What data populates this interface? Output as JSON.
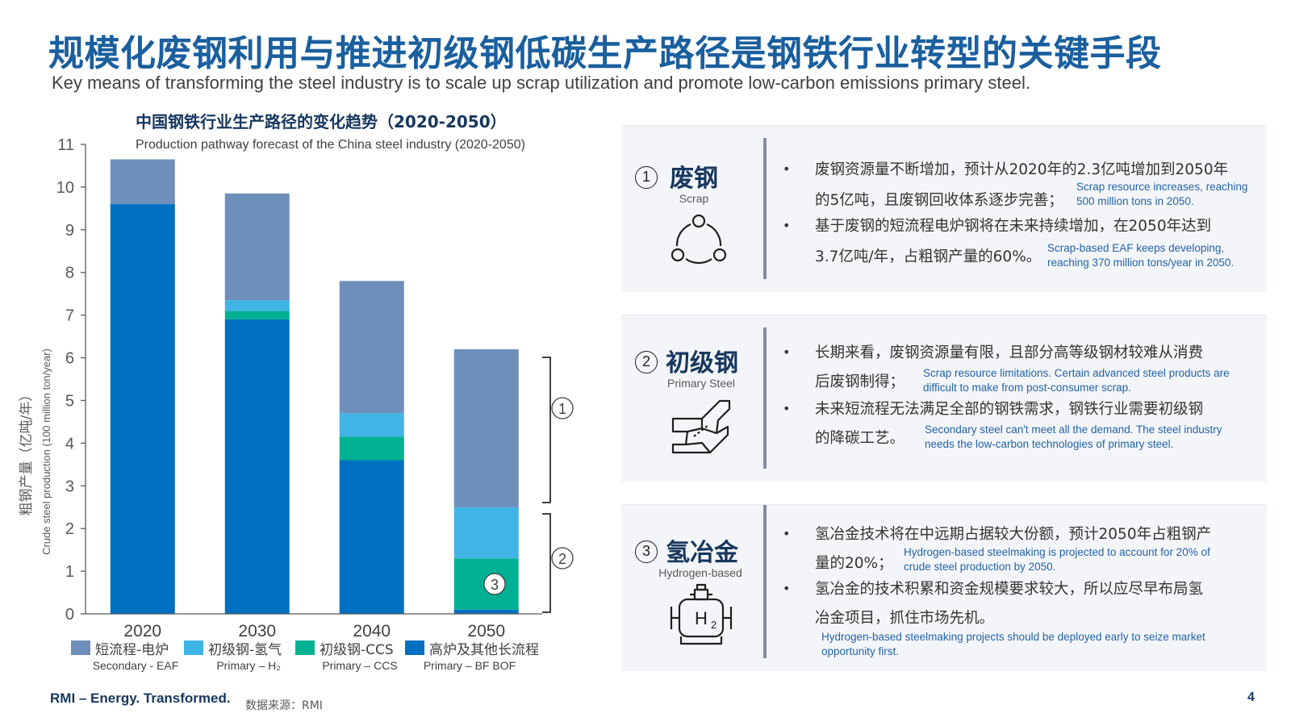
{
  "header": {
    "title_cn": "规模化废钢利用与推进初级钢低碳生产路径是钢铁行业转型的关键手段",
    "title_en": "Key means of transforming the steel industry is to scale up scrap utilization and promote low-carbon emissions primary steel."
  },
  "chart_data": {
    "type": "bar",
    "stacked": true,
    "title": "中国钢铁行业生产路径的变化趋势（2020-2050）",
    "subtitle": "Production pathway forecast of the China steel industry (2020-2050)",
    "ylabel_cn": "粗钢产量（亿吨/年）",
    "ylabel_en": "Crude steel production (100 million ton/year)",
    "ylim": [
      0,
      11
    ],
    "yticks": [
      0,
      1,
      2,
      3,
      4,
      5,
      6,
      7,
      8,
      9,
      10,
      11
    ],
    "categories": [
      "2020",
      "2030",
      "2040",
      "2050"
    ],
    "series": [
      {
        "name": "高炉及其他长流程",
        "name_en": "Primary – BF BOF",
        "color": "#0070c0",
        "values": [
          9.6,
          6.9,
          3.6,
          0.1
        ]
      },
      {
        "name": "初级钢-CCS",
        "name_en": "Primary – CCS",
        "color": "#00b092",
        "values": [
          0.0,
          0.2,
          0.55,
          1.2
        ]
      },
      {
        "name": "初级钢-氢气",
        "name_en": "Primary – H₂",
        "color": "#41b4e6",
        "values": [
          0.0,
          0.25,
          0.55,
          1.2
        ]
      },
      {
        "name": "短流程-电炉",
        "name_en": "Secondary - EAF",
        "color": "#6e8fba",
        "values": [
          1.05,
          2.5,
          3.1,
          3.7
        ]
      }
    ],
    "annotations": [
      "1",
      "2",
      "3"
    ],
    "grid": false,
    "legend": "bottom"
  },
  "panels": [
    {
      "num": "1",
      "title_cn": "废钢",
      "title_en": "Scrap",
      "icon": "recycle-cycle-icon",
      "bullets": [
        {
          "cn1": "废钢资源量不断增加，预计从2020年的2.3亿吨增加到2050年",
          "cn2": "的5亿吨，且废钢回收体系逐步完善；",
          "en": "Scrap resource increases, reaching 500 million tons in 2050."
        },
        {
          "cn1": "基于废钢的短流程电炉钢将在未来持续增加，在2050年达到",
          "cn2": "3.7亿吨/年，占粗钢产量的60%。",
          "en": "Scrap-based EAF keeps developing, reaching 370 million tons/year in 2050."
        }
      ]
    },
    {
      "num": "2",
      "title_cn": "初级钢",
      "title_en": "Primary Steel",
      "icon": "steel-beam-icon",
      "bullets": [
        {
          "cn1": "长期来看，废钢资源量有限，且部分高等级钢材较难从消费",
          "cn2": "后废钢制得；",
          "en": "Scrap resource limitations. Certain advanced steel products are difficult to make from post-consumer scrap."
        },
        {
          "cn1": "未来短流程无法满足全部的钢铁需求，钢铁行业需要初级钢",
          "cn2": "的降碳工艺。",
          "en": "Secondary steel can't meet all the demand. The steel industry needs the low-carbon technologies of primary steel."
        }
      ]
    },
    {
      "num": "3",
      "title_cn": "氢冶金",
      "title_en": "Hydrogen-based",
      "icon": "hydrogen-tank-icon",
      "bullets": [
        {
          "cn1": "氢冶金技术将在中远期占据较大份额，预计2050年占粗钢产",
          "cn2": "量的20%；",
          "en": "Hydrogen-based steelmaking is projected to account for 20% of crude steel production by 2050."
        },
        {
          "cn1": "氢冶金的技术积累和资金规模要求较大，所以应尽早布局氢",
          "cn2": "冶金项目，抓住市场先机。",
          "en": "Hydrogen-based steelmaking projects should be deployed early to seize market opportunity first."
        }
      ]
    }
  ],
  "footer": {
    "brand": "RMI – Energy. Transformed.",
    "source": "数据来源：RMI",
    "page": "4"
  }
}
